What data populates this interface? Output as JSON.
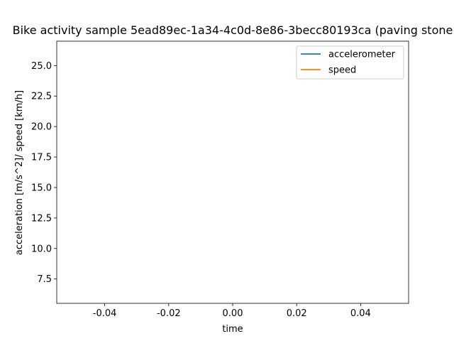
{
  "chart_data": {
    "type": "line",
    "title": "Bike activity sample 5ead89ec-1a34-4c0d-8e86-3becc80193ca (paving stone",
    "xlabel": "time",
    "ylabel": "acceleration [m/s^2]/ speed [km/h]",
    "xlim": [
      -0.055,
      0.055
    ],
    "ylim": [
      5.5,
      27.0
    ],
    "x_ticks": [
      "-0.04",
      "-0.02",
      "0.00",
      "0.02",
      "0.04"
    ],
    "y_ticks": [
      "7.5",
      "10.0",
      "12.5",
      "15.0",
      "17.5",
      "20.0",
      "22.5",
      "25.0"
    ],
    "grid": false,
    "legend_position": "top-right",
    "series": [
      {
        "name": "accelerometer",
        "color": "#1f77b4",
        "x": [],
        "y": []
      },
      {
        "name": "speed",
        "color": "#ff7f0e",
        "x": [],
        "y": []
      }
    ]
  }
}
